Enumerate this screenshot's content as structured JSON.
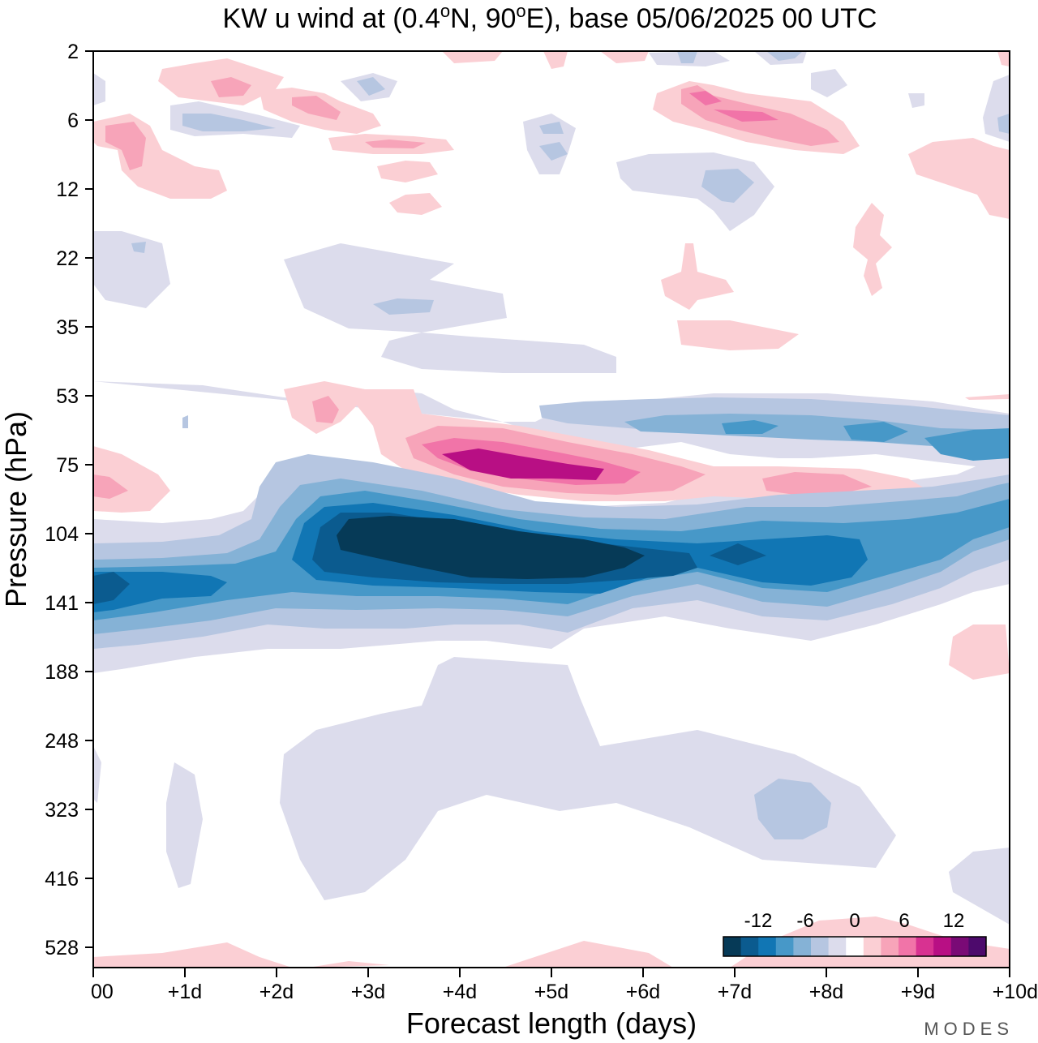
{
  "chart_data": {
    "type": "heatmap",
    "title": "KW u wind at (0.4°N, 90°E),  base 05/06/2025  00 UTC",
    "title_parts": {
      "prefix": "KW u wind at (0.4",
      "deg1": "o",
      "mid": "N, 90",
      "deg2": "o",
      "suffix": "E),  base 05/06/2025  00 UTC"
    },
    "xlabel": "Forecast length (days)",
    "ylabel": "Pressure (hPa)",
    "x_ticks": [
      "00",
      "+1d",
      "+2d",
      "+3d",
      "+4d",
      "+5d",
      "+6d",
      "+7d",
      "+8d",
      "+9d",
      "+10d"
    ],
    "xlim": [
      0,
      10
    ],
    "y_ticks": [
      "2",
      "6",
      "12",
      "22",
      "35",
      "53",
      "75",
      "104",
      "141",
      "188",
      "248",
      "323",
      "416",
      "528"
    ],
    "y_scale": "pressure levels, top = 2 hPa, bottom ≈ 600 hPa",
    "colorbar": {
      "labels": [
        "-12",
        "-6",
        "0",
        "6",
        "12"
      ],
      "levels": [
        -18,
        -15,
        -12,
        -9,
        -6,
        -3,
        0,
        3,
        6,
        9,
        12,
        15,
        18
      ],
      "colors": [
        "#063a57",
        "#0b5b8f",
        "#1176b4",
        "#4798c8",
        "#85b2d6",
        "#b6c6e1",
        "#dcdcec",
        "#ffffff",
        "#fbcfd4",
        "#f7a4b9",
        "#f174a8",
        "#d83291",
        "#b80f84",
        "#7a0a76",
        "#4d0a6c"
      ],
      "placement": "bottom-right"
    },
    "features": [
      {
        "name": "strong easterly core",
        "value_ms": -15,
        "x_range_days": [
          2.6,
          6.0
        ],
        "pressure_hPa": [
          104,
          130
        ]
      },
      {
        "name": "easterly band",
        "value_ms": -6,
        "x_range_days": [
          0,
          9.5
        ],
        "pressure_hPa": [
          85,
          170
        ]
      },
      {
        "name": "westerly maximum",
        "value_ms": 12,
        "x_range_days": [
          4.0,
          5.6
        ],
        "pressure_hPa": [
          70,
          80
        ]
      },
      {
        "name": "mid-troposphere weak easterlies",
        "value_ms": -3,
        "x_range_days": [
          2.0,
          9.0
        ],
        "pressure_hPa": [
          200,
          450
        ]
      }
    ]
  },
  "branding": {
    "logo_text": "MODES"
  }
}
